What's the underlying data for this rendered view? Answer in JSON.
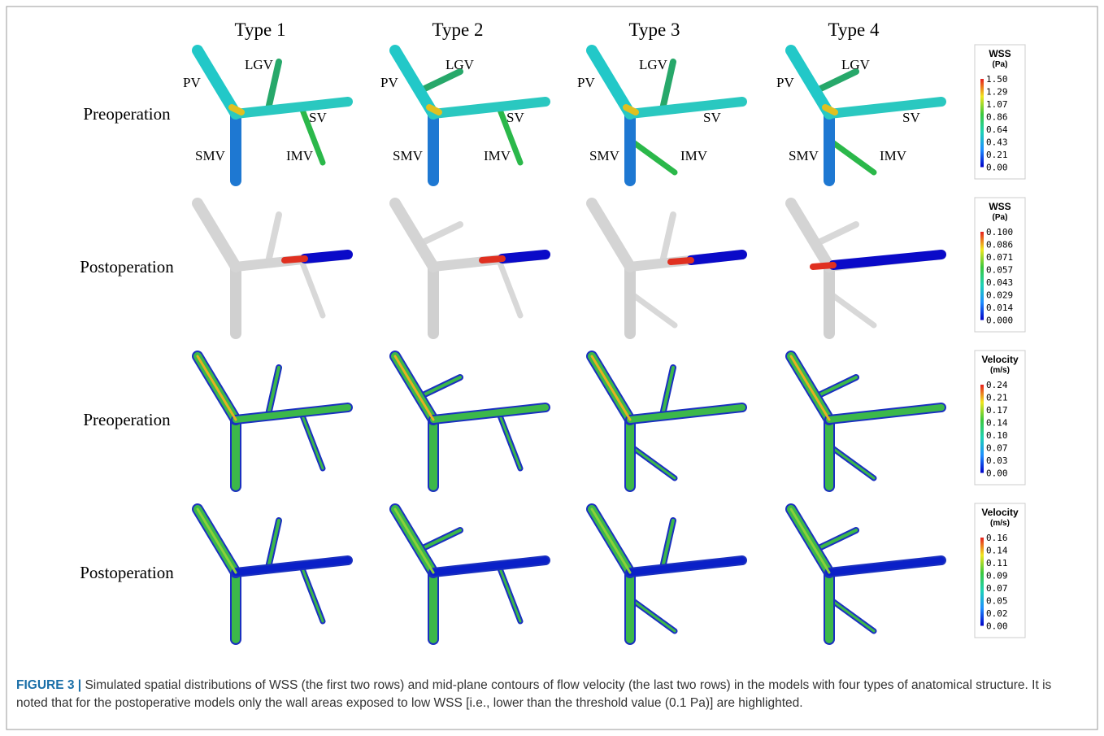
{
  "columns": [
    "Type 1",
    "Type 2",
    "Type 3",
    "Type 4"
  ],
  "vessel_labels": {
    "pv": "PV",
    "lgv": "LGV",
    "sv": "SV",
    "smv": "SMV",
    "imv": "IMV"
  },
  "rows": [
    {
      "label": "Preoperation",
      "legend": {
        "title": "WSS",
        "unit": "(Pa)",
        "ticks": [
          "1.50",
          "1.29",
          "1.07",
          "0.86",
          "0.64",
          "0.43",
          "0.21",
          "0.00"
        ]
      }
    },
    {
      "label": "Postoperation",
      "legend": {
        "title": "WSS",
        "unit": "(Pa)",
        "ticks": [
          "0.100",
          "0.086",
          "0.071",
          "0.057",
          "0.043",
          "0.029",
          "0.014",
          "0.000"
        ]
      }
    },
    {
      "label": "Preoperation",
      "legend": {
        "title": "Velocity",
        "unit": "(m/s)",
        "ticks": [
          "0.24",
          "0.21",
          "0.17",
          "0.14",
          "0.10",
          "0.07",
          "0.03",
          "0.00"
        ]
      }
    },
    {
      "label": "Postoperation",
      "legend": {
        "title": "Velocity",
        "unit": "(m/s)",
        "ticks": [
          "0.16",
          "0.14",
          "0.11",
          "0.09",
          "0.07",
          "0.05",
          "0.02",
          "0.00"
        ]
      }
    }
  ],
  "caption": {
    "label": "FIGURE 3 |",
    "text": "Simulated spatial distributions of WSS (the first two rows) and mid-plane contours of flow velocity (the last two rows) in the models with four types of anatomical structure. It is noted that for the postoperative models only the wall areas exposed to low WSS [i.e., lower than the threshold value (0.1 Pa)] are highlighted."
  }
}
